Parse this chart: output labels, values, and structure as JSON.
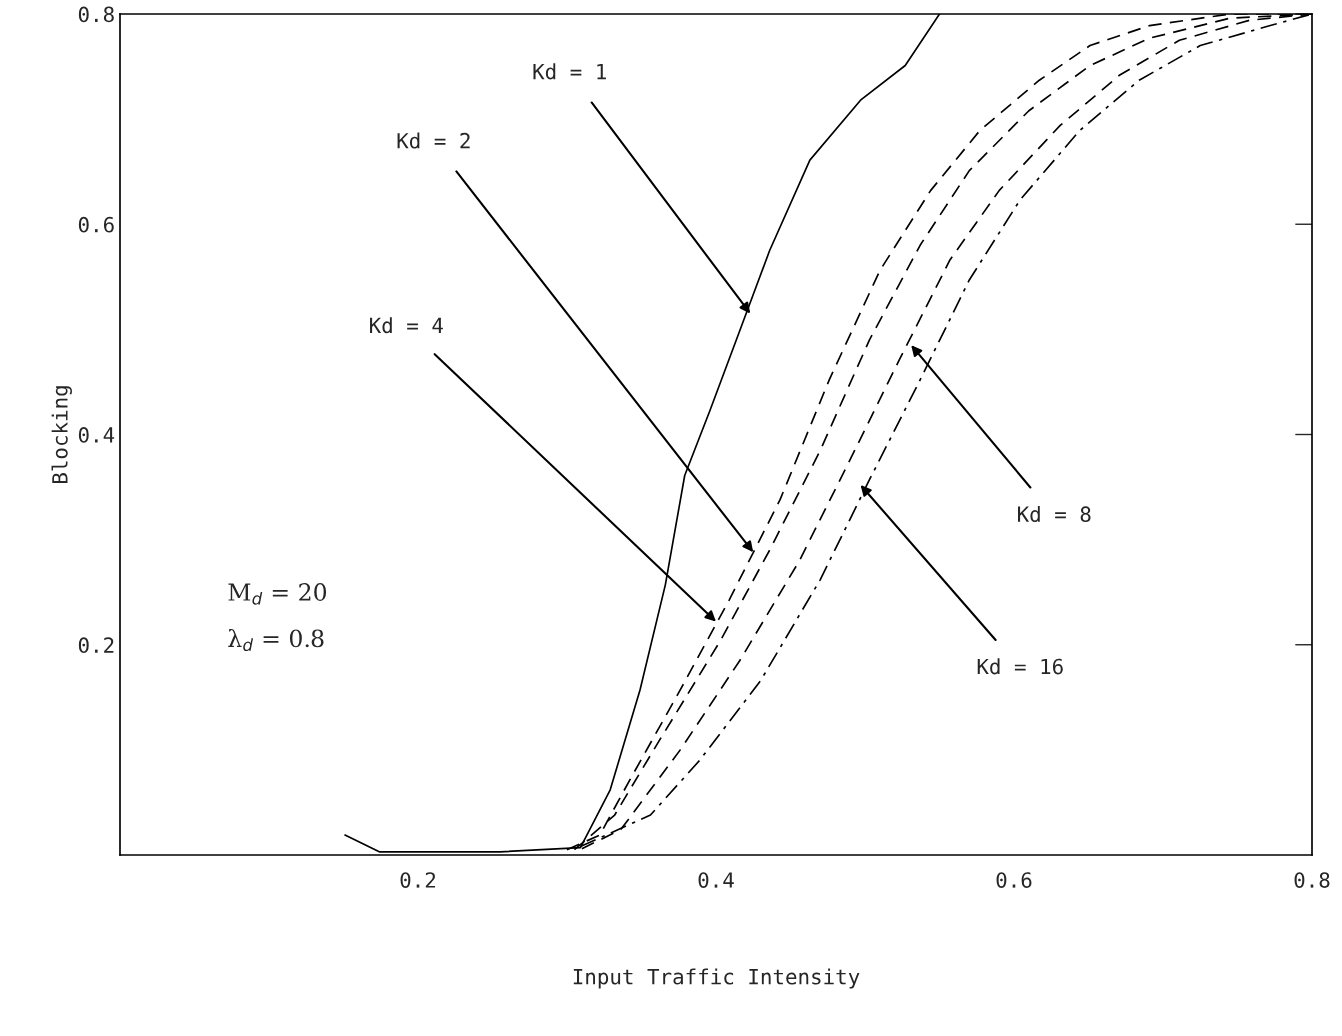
{
  "chart_data": {
    "type": "line",
    "xlabel": "Input Traffic Intensity",
    "ylabel": "Blocking",
    "xlim": [
      0,
      0.8
    ],
    "ylim": [
      0,
      0.8
    ],
    "xticks": [
      0.2,
      0.4,
      0.6,
      0.8
    ],
    "yticks": [
      0.2,
      0.4,
      0.6,
      0.8
    ],
    "grid": false,
    "series": [
      {
        "color": "#000000",
        "line_style": "solid",
        "x": [
          0.151,
          0.174,
          0.255,
          0.309,
          0.329,
          0.349,
          0.366,
          0.379,
          0.396,
          0.416,
          0.436,
          0.463,
          0.497,
          0.527,
          0.55
        ],
        "values": [
          0.019,
          0.003,
          0.003,
          0.007,
          0.062,
          0.157,
          0.257,
          0.361,
          0.423,
          0.499,
          0.575,
          0.661,
          0.718,
          0.751,
          0.8
        ]
      },
      {
        "color": "#000000",
        "line_style": "dashed",
        "x": [
          0.3,
          0.322,
          0.342,
          0.376,
          0.409,
          0.443,
          0.476,
          0.51,
          0.544,
          0.577,
          0.617,
          0.651,
          0.691,
          0.745,
          0.8
        ],
        "values": [
          0.005,
          0.019,
          0.071,
          0.157,
          0.243,
          0.338,
          0.452,
          0.556,
          0.632,
          0.689,
          0.737,
          0.77,
          0.789,
          0.8,
          0.8
        ]
      },
      {
        "color": "#000000",
        "line_style": "dashed",
        "x": [
          0.305,
          0.332,
          0.362,
          0.403,
          0.436,
          0.47,
          0.503,
          0.537,
          0.57,
          0.61,
          0.651,
          0.691,
          0.745,
          0.8
        ],
        "values": [
          0.005,
          0.038,
          0.109,
          0.204,
          0.29,
          0.385,
          0.49,
          0.58,
          0.651,
          0.708,
          0.751,
          0.777,
          0.796,
          0.8
        ]
      },
      {
        "color": "#000000",
        "line_style": "dashed",
        "x": [
          0.31,
          0.336,
          0.376,
          0.416,
          0.456,
          0.49,
          0.523,
          0.557,
          0.59,
          0.631,
          0.671,
          0.711,
          0.758,
          0.8
        ],
        "values": [
          0.006,
          0.024,
          0.1,
          0.185,
          0.28,
          0.376,
          0.471,
          0.566,
          0.632,
          0.694,
          0.742,
          0.775,
          0.794,
          0.8
        ]
      },
      {
        "color": "#000000",
        "line_style": "dashdot",
        "x": [
          0.309,
          0.356,
          0.389,
          0.43,
          0.47,
          0.503,
          0.537,
          0.57,
          0.604,
          0.644,
          0.684,
          0.725,
          0.772,
          0.8
        ],
        "values": [
          0.008,
          0.038,
          0.09,
          0.166,
          0.262,
          0.357,
          0.452,
          0.547,
          0.623,
          0.689,
          0.737,
          0.77,
          0.789,
          0.8
        ]
      }
    ],
    "annotations": [
      {
        "text": "Kd = 1",
        "x": 0.423,
        "y": 0.515
      },
      {
        "text": "Kd = 2",
        "x": 0.425,
        "y": 0.288
      },
      {
        "text": "Kd = 4",
        "x": 0.4,
        "y": 0.222
      },
      {
        "text": "Kd = 8",
        "x": 0.531,
        "y": 0.485
      },
      {
        "text": "Kd = 16",
        "x": 0.497,
        "y": 0.352
      },
      "M$_{d}$ = 20",
      "λ$_{d}$ = 0.8"
    ]
  }
}
